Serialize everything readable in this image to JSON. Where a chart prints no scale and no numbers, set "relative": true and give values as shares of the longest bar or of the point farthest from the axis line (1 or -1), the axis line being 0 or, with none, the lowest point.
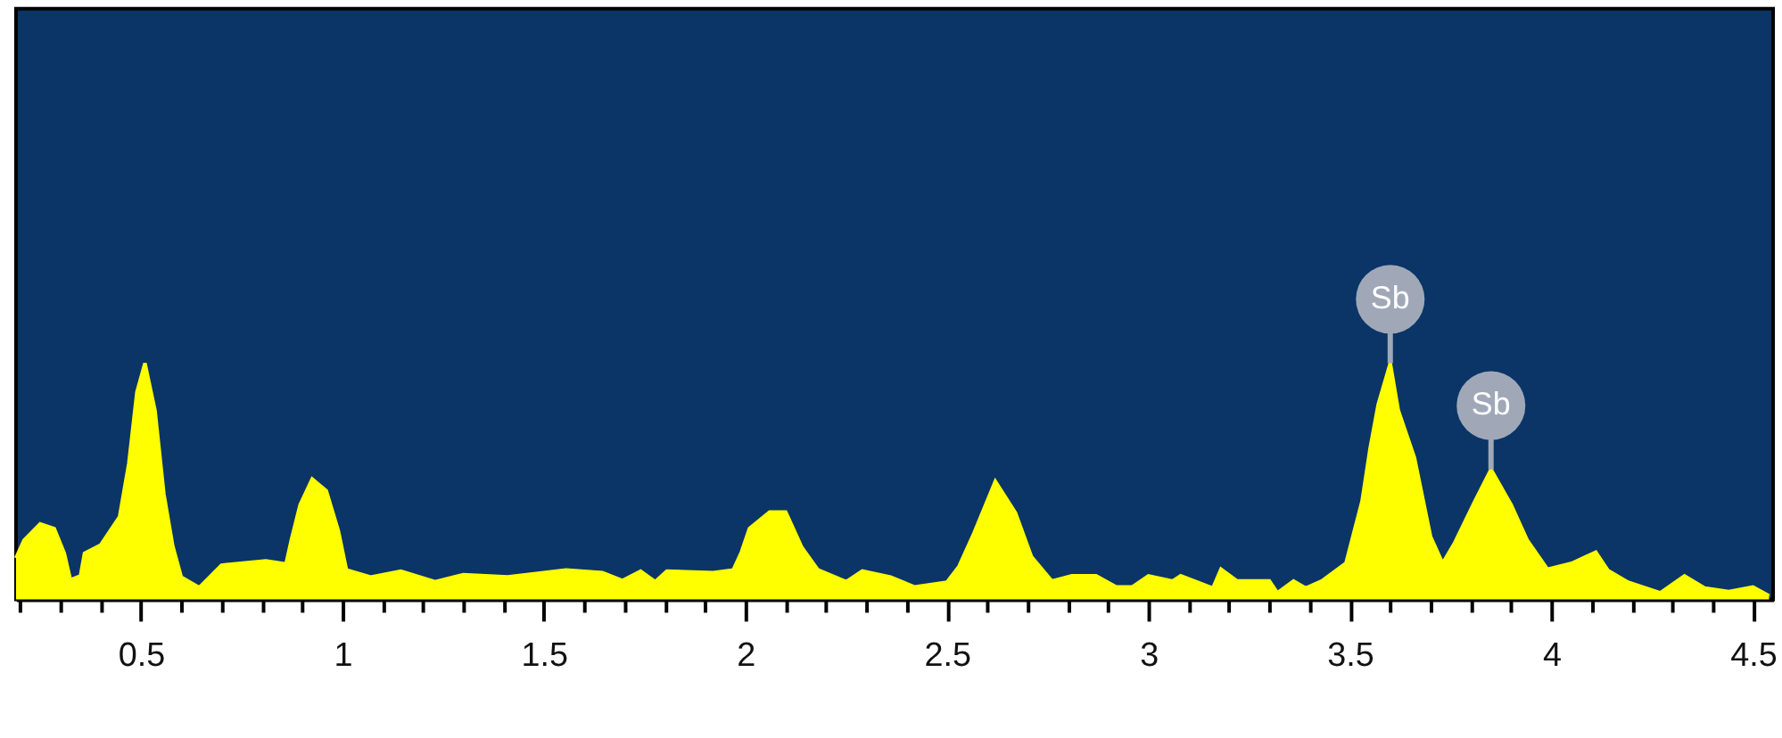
{
  "chart_data": {
    "type": "area",
    "relative": true,
    "x": [
      0.19,
      0.21,
      0.25,
      0.285,
      0.31,
      0.325,
      0.35,
      0.36,
      0.4,
      0.447,
      0.47,
      0.49,
      0.51,
      0.535,
      0.557,
      0.579,
      0.6,
      0.645,
      0.7,
      0.81,
      0.86,
      0.873,
      0.895,
      0.925,
      0.96,
      0.99,
      1.01,
      1.07,
      1.145,
      1.23,
      1.3,
      1.41,
      1.555,
      1.645,
      1.695,
      1.74,
      1.776,
      1.805,
      1.92,
      1.97,
      1.99,
      2.01,
      2.06,
      2.1,
      2.14,
      2.18,
      2.25,
      2.29,
      2.36,
      2.42,
      2.5,
      2.53,
      2.567,
      2.62,
      2.67,
      2.71,
      2.76,
      2.81,
      2.87,
      2.92,
      2.96,
      3.0,
      3.06,
      3.08,
      3.16,
      3.18,
      3.22,
      3.3,
      3.32,
      3.36,
      3.39,
      3.43,
      3.49,
      3.53,
      3.55,
      3.57,
      3.6,
      3.62,
      3.66,
      3.7,
      3.73,
      3.76,
      3.81,
      3.85,
      3.9,
      3.94,
      3.99,
      4.05,
      4.11,
      4.14,
      4.19,
      4.27,
      4.33,
      4.38,
      4.44,
      4.5,
      4.54
    ],
    "series": [
      {
        "color": "#ffff00",
        "values": [
          0.175,
          0.25,
          0.32,
          0.3,
          0.195,
          0.083,
          0.1,
          0.195,
          0.23,
          0.35,
          0.576,
          0.877,
          1.0,
          0.8,
          0.446,
          0.226,
          0.095,
          0.05,
          0.145,
          0.163,
          0.15,
          0.25,
          0.4,
          0.51,
          0.46,
          0.29,
          0.125,
          0.095,
          0.12,
          0.075,
          0.105,
          0.095,
          0.125,
          0.113,
          0.08,
          0.12,
          0.075,
          0.12,
          0.113,
          0.125,
          0.2,
          0.3,
          0.37,
          0.37,
          0.22,
          0.125,
          0.075,
          0.12,
          0.095,
          0.053,
          0.073,
          0.14,
          0.28,
          0.5,
          0.366,
          0.18,
          0.078,
          0.1,
          0.1,
          0.053,
          0.053,
          0.1,
          0.078,
          0.1,
          0.048,
          0.128,
          0.078,
          0.078,
          0.028,
          0.078,
          0.048,
          0.078,
          0.153,
          0.416,
          0.64,
          0.825,
          1.0,
          0.8,
          0.6,
          0.266,
          0.153,
          0.24,
          0.416,
          0.55,
          0.4,
          0.25,
          0.128,
          0.153,
          0.2,
          0.123,
          0.073,
          0.028,
          0.1,
          0.048,
          0.033,
          0.053,
          0.015
        ]
      }
    ],
    "xlim": [
      0.19,
      4.55
    ],
    "xticks": [
      {
        "value": 0.2,
        "label": null
      },
      {
        "value": 0.3,
        "label": null
      },
      {
        "value": 0.4,
        "label": null
      },
      0.5,
      {
        "value": 0.6,
        "label": null
      },
      {
        "value": 0.7,
        "label": null
      },
      {
        "value": 0.8,
        "label": null
      },
      {
        "value": 0.9,
        "label": null
      },
      1,
      {
        "value": 1.1,
        "label": null
      },
      {
        "value": 1.2,
        "label": null
      },
      {
        "value": 1.3,
        "label": null
      },
      {
        "value": 1.4,
        "label": null
      },
      1.5,
      {
        "value": 1.6,
        "label": null
      },
      {
        "value": 1.7,
        "label": null
      },
      {
        "value": 1.8,
        "label": null
      },
      {
        "value": 1.9,
        "label": null
      },
      2,
      {
        "value": 2.1,
        "label": null
      },
      {
        "value": 2.2,
        "label": null
      },
      {
        "value": 2.3,
        "label": null
      },
      {
        "value": 2.4,
        "label": null
      },
      2.5,
      {
        "value": 2.6,
        "label": null
      },
      {
        "value": 2.7,
        "label": null
      },
      {
        "value": 2.8,
        "label": null
      },
      {
        "value": 2.9,
        "label": null
      },
      3,
      {
        "value": 3.1,
        "label": null
      },
      {
        "value": 3.2,
        "label": null
      },
      {
        "value": 3.3,
        "label": null
      },
      {
        "value": 3.4,
        "label": null
      },
      3.5,
      {
        "value": 3.6,
        "label": null
      },
      {
        "value": 3.7,
        "label": null
      },
      {
        "value": 3.8,
        "label": null
      },
      {
        "value": 3.9,
        "label": null
      },
      4,
      {
        "value": 4.1,
        "label": null
      },
      {
        "value": 4.2,
        "label": null
      },
      {
        "value": 4.3,
        "label": null
      },
      {
        "value": 4.4,
        "label": null
      },
      4.5
    ],
    "annotations": [
      {
        "text": "Sb",
        "x": 3.6,
        "y": 1.0
      },
      {
        "text": "Sb",
        "x": 3.85,
        "y": 0.55
      }
    ],
    "grid": false
  }
}
